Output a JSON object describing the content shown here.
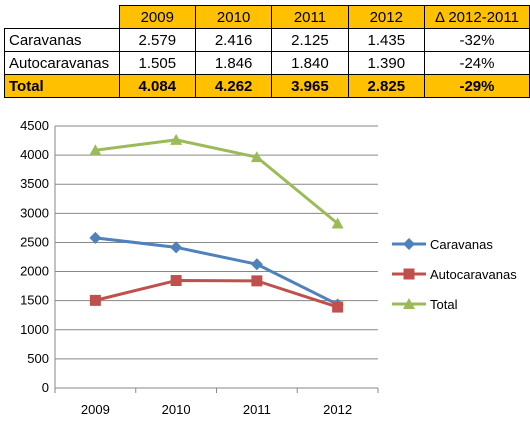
{
  "table": {
    "headers": [
      "",
      "2009",
      "2010",
      "2011",
      "2012",
      "Δ 2012-2011"
    ],
    "rows": [
      [
        "Caravanas",
        "2.579",
        "2.416",
        "2.125",
        "1.435",
        "-32%"
      ],
      [
        "Autocaravanas",
        "1.505",
        "1.846",
        "1.840",
        "1.390",
        "-24%"
      ],
      [
        "Total",
        "4.084",
        "4.262",
        "3.965",
        "2.825",
        "-29%"
      ]
    ],
    "header_color": "#ffc000",
    "total_row_color": "#ffc000"
  },
  "chart_data": {
    "type": "line",
    "categories": [
      "2009",
      "2010",
      "2011",
      "2012"
    ],
    "series": [
      {
        "name": "Caravanas",
        "values": [
          2579,
          2416,
          2125,
          1435
        ],
        "color": "#4f81bd",
        "marker": "diamond"
      },
      {
        "name": "Autocaravanas",
        "values": [
          1505,
          1846,
          1840,
          1390
        ],
        "color": "#c0504d",
        "marker": "square"
      },
      {
        "name": "Total",
        "values": [
          4084,
          4262,
          3965,
          2825
        ],
        "color": "#9bbb59",
        "marker": "triangle"
      }
    ],
    "ylim": [
      0,
      4500
    ],
    "yticks": [
      0,
      500,
      1000,
      1500,
      2000,
      2500,
      3000,
      3500,
      4000,
      4500
    ],
    "grid": true,
    "legend_position": "right"
  }
}
